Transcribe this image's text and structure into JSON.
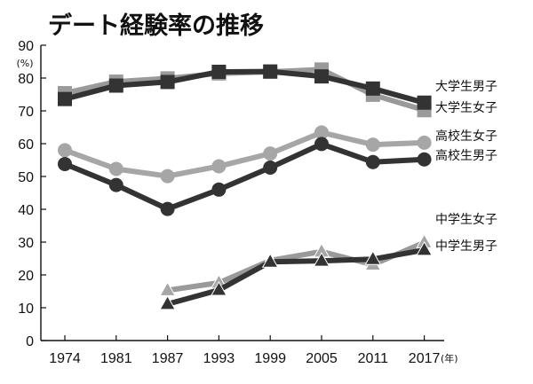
{
  "chart_data": {
    "type": "line",
    "title": "デート経験率の推移",
    "y_unit": "(%)",
    "x_unit": "(年)",
    "ylim": [
      0,
      90
    ],
    "yticks": [
      0,
      10,
      20,
      30,
      40,
      50,
      60,
      70,
      80,
      90
    ],
    "x": [
      "1974",
      "1981",
      "1987",
      "1993",
      "1999",
      "2005",
      "2011",
      "2017"
    ],
    "grid": false,
    "series": [
      {
        "name": "大学生男子",
        "marker": "square",
        "line_color": "#333333",
        "marker_color": "#333333",
        "values": [
          73.6,
          77.7,
          78.8,
          81.9,
          82.0,
          80.5,
          76.8,
          72.5
        ]
      },
      {
        "name": "大学生女子",
        "marker": "square",
        "line_color": "#9a9a9a",
        "marker_color": "#9a9a9a",
        "values": [
          75.4,
          78.9,
          79.9,
          81.4,
          81.9,
          82.6,
          74.9,
          70.2
        ]
      },
      {
        "name": "高校生女子",
        "marker": "circle",
        "line_color": "#a6a6a6",
        "marker_color": "#a6a6a6",
        "values": [
          58.0,
          52.3,
          50.1,
          53.1,
          57.0,
          63.4,
          59.7,
          60.3
        ]
      },
      {
        "name": "高校生男子",
        "marker": "circle",
        "line_color": "#333333",
        "marker_color": "#333333",
        "values": [
          53.8,
          47.4,
          40.1,
          46.0,
          52.7,
          59.9,
          54.4,
          55.2
        ]
      },
      {
        "name": "中学生女子",
        "marker": "triangle",
        "line_color": "#9a9a9a",
        "marker_color": "#a6a6a6",
        "values": [
          null,
          null,
          15.3,
          17.6,
          24.4,
          27.1,
          23.1,
          29.9
        ]
      },
      {
        "name": "中学生男子",
        "marker": "triangle",
        "line_color": "#333333",
        "marker_color": "#333333",
        "values": [
          null,
          null,
          11.1,
          15.4,
          24.0,
          24.3,
          24.8,
          27.6
        ]
      }
    ]
  }
}
